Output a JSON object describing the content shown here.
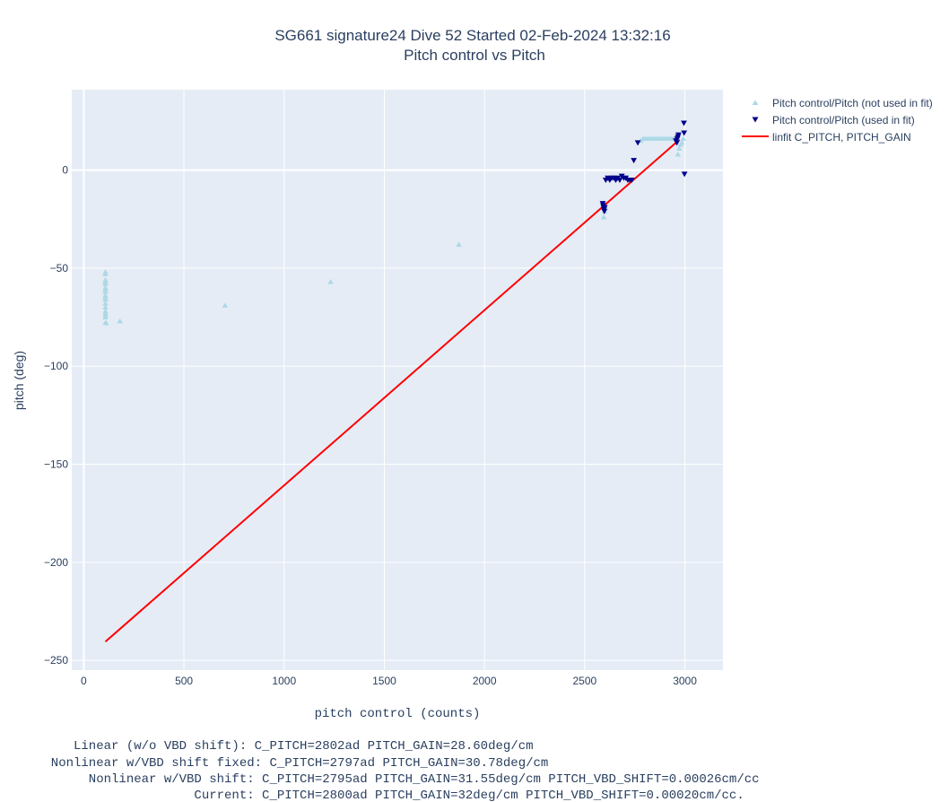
{
  "chart_data": {
    "type": "scatter",
    "title": "SG661 signature24 Dive 52 Started 02-Feb-2024 13:32:16",
    "subtitle": "Pitch control vs Pitch",
    "xlabel": "pitch control (counts)",
    "ylabel": "pitch (deg)",
    "xlim": [
      -60,
      3190
    ],
    "ylim": [
      -255,
      41
    ],
    "x_ticks": [
      0,
      500,
      1000,
      1500,
      2000,
      2500,
      3000
    ],
    "y_ticks": [
      0,
      -50,
      -100,
      -150,
      -200,
      -250
    ],
    "x_tick_labels": [
      "0",
      "500",
      "1000",
      "1500",
      "2000",
      "2500",
      "3000"
    ],
    "y_tick_labels": [
      "0",
      "−50",
      "−100",
      "−150",
      "−200",
      "−250"
    ],
    "grid": true,
    "legend_position": "top-right outside",
    "plot_bg": "#e5ecf6",
    "series": [
      {
        "name": "Pitch control/Pitch (not used in fit)",
        "marker": "triangle-up",
        "color": "#add8e6",
        "points": [
          [
            108,
            -52
          ],
          [
            108,
            -53
          ],
          [
            108,
            -56
          ],
          [
            108,
            -57
          ],
          [
            108,
            -58
          ],
          [
            108,
            -60
          ],
          [
            108,
            -61
          ],
          [
            108,
            -62
          ],
          [
            108,
            -64
          ],
          [
            108,
            -65
          ],
          [
            108,
            -66
          ],
          [
            108,
            -68
          ],
          [
            108,
            -70
          ],
          [
            108,
            -72
          ],
          [
            108,
            -73
          ],
          [
            108,
            -74
          ],
          [
            108,
            -75
          ],
          [
            108,
            -78
          ],
          [
            112,
            -78
          ],
          [
            180,
            -77
          ],
          [
            705,
            -69
          ],
          [
            1232,
            -57
          ],
          [
            1872,
            -38
          ],
          [
            2595,
            -24
          ],
          [
            2600,
            -21
          ],
          [
            2604,
            -19
          ],
          [
            2780,
            15
          ],
          [
            2790,
            16
          ],
          [
            2800,
            16
          ],
          [
            2810,
            16
          ],
          [
            2820,
            16
          ],
          [
            2830,
            16
          ],
          [
            2840,
            16
          ],
          [
            2850,
            16
          ],
          [
            2860,
            16
          ],
          [
            2870,
            16
          ],
          [
            2880,
            16
          ],
          [
            2890,
            16
          ],
          [
            2900,
            16
          ],
          [
            2910,
            16
          ],
          [
            2920,
            16
          ],
          [
            2930,
            16
          ],
          [
            2940,
            16
          ],
          [
            2950,
            16
          ],
          [
            2960,
            16
          ],
          [
            2965,
            8
          ],
          [
            2972,
            11
          ],
          [
            2978,
            13
          ],
          [
            2985,
            14
          ],
          [
            2992,
            16
          ]
        ]
      },
      {
        "name": "Pitch control/Pitch (used in fit)",
        "marker": "triangle-down",
        "color": "#00008b",
        "points": [
          [
            2590,
            -17
          ],
          [
            2592,
            -18
          ],
          [
            2594,
            -19
          ],
          [
            2596,
            -20
          ],
          [
            2598,
            -21
          ],
          [
            2600,
            -19
          ],
          [
            2605,
            -5
          ],
          [
            2615,
            -4
          ],
          [
            2625,
            -5
          ],
          [
            2635,
            -4
          ],
          [
            2645,
            -4
          ],
          [
            2655,
            -5
          ],
          [
            2665,
            -4
          ],
          [
            2675,
            -5
          ],
          [
            2685,
            -3
          ],
          [
            2695,
            -4
          ],
          [
            2705,
            -4
          ],
          [
            2715,
            -5
          ],
          [
            2725,
            -5
          ],
          [
            2735,
            -5
          ],
          [
            2745,
            5
          ],
          [
            2765,
            14
          ],
          [
            2955,
            15
          ],
          [
            2960,
            14
          ],
          [
            2962,
            16
          ],
          [
            2965,
            17
          ],
          [
            2968,
            18
          ],
          [
            2995,
            24
          ],
          [
            2996,
            19
          ],
          [
            2998,
            -2
          ]
        ]
      },
      {
        "name": "linfit C_PITCH, PITCH_GAIN",
        "mode": "line",
        "color": "#ff0000",
        "points": [
          [
            108,
            -240.5
          ],
          [
            2974,
            15.6
          ]
        ]
      }
    ],
    "annotations": [
      "     Linear (w/o VBD shift): C_PITCH=2802ad PITCH_GAIN=28.60deg/cm",
      "  Nonlinear w/VBD shift fixed: C_PITCH=2797ad PITCH_GAIN=30.78deg/cm",
      "       Nonlinear w/VBD shift: C_PITCH=2795ad PITCH_GAIN=31.55deg/cm PITCH_VBD_SHIFT=0.00026cm/cc",
      "                     Current: C_PITCH=2800ad PITCH_GAIN=32deg/cm PITCH_VBD_SHIFT=0.00020cm/cc."
    ]
  }
}
